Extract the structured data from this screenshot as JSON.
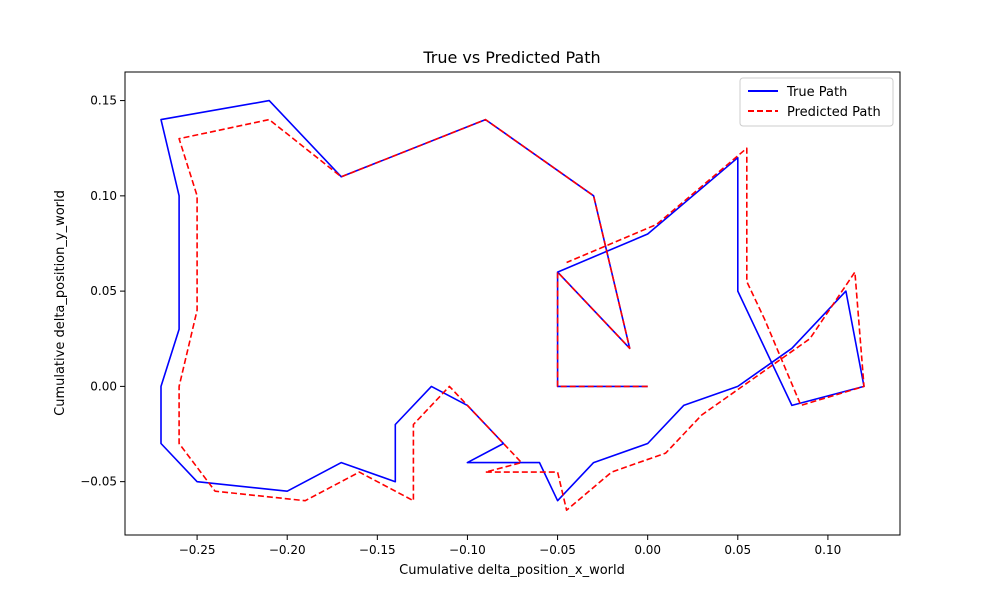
{
  "chart_data": {
    "type": "line",
    "title": "True vs Predicted Path",
    "xlabel": "Cumulative delta_position_x_world",
    "ylabel": "Cumulative delta_position_y_world",
    "xlim": [
      -0.29,
      0.14
    ],
    "ylim": [
      -0.078,
      0.165
    ],
    "xticks": [
      -0.25,
      -0.2,
      -0.15,
      -0.1,
      -0.05,
      0.0,
      0.05,
      0.1
    ],
    "xtick_labels": [
      "−0.25",
      "−0.20",
      "−0.15",
      "−0.10",
      "−0.05",
      "0.00",
      "0.05",
      "0.10"
    ],
    "yticks": [
      -0.05,
      0.0,
      0.05,
      0.1,
      0.15
    ],
    "ytick_labels": [
      "−0.05",
      "0.00",
      "0.05",
      "0.10",
      "0.15"
    ],
    "grid": false,
    "legend_position": "top-right",
    "series": [
      {
        "name": "True Path",
        "color": "#0000ff",
        "style": "solid",
        "points": [
          [
            0.0,
            0.0
          ],
          [
            -0.05,
            0.0
          ],
          [
            -0.05,
            0.06
          ],
          [
            -0.01,
            0.02
          ],
          [
            -0.03,
            0.1
          ],
          [
            -0.09,
            0.14
          ],
          [
            -0.17,
            0.11
          ],
          [
            -0.21,
            0.15
          ],
          [
            -0.27,
            0.14
          ],
          [
            -0.26,
            0.1
          ],
          [
            -0.26,
            0.03
          ],
          [
            -0.27,
            0.0
          ],
          [
            -0.27,
            -0.03
          ],
          [
            -0.25,
            -0.05
          ],
          [
            -0.2,
            -0.055
          ],
          [
            -0.17,
            -0.04
          ],
          [
            -0.14,
            -0.05
          ],
          [
            -0.14,
            -0.02
          ],
          [
            -0.12,
            0.0
          ],
          [
            -0.1,
            -0.01
          ],
          [
            -0.08,
            -0.03
          ],
          [
            -0.1,
            -0.04
          ],
          [
            -0.06,
            -0.04
          ],
          [
            -0.05,
            -0.06
          ],
          [
            -0.03,
            -0.04
          ],
          [
            0.0,
            -0.03
          ],
          [
            0.02,
            -0.01
          ],
          [
            0.05,
            0.0
          ],
          [
            0.08,
            0.02
          ],
          [
            0.11,
            0.05
          ],
          [
            0.12,
            0.0
          ],
          [
            0.08,
            -0.01
          ],
          [
            0.06,
            0.03
          ],
          [
            0.05,
            0.05
          ],
          [
            0.05,
            0.12
          ],
          [
            0.0,
            0.08
          ],
          [
            -0.05,
            0.06
          ]
        ]
      },
      {
        "name": "Predicted Path",
        "color": "#ff0000",
        "style": "dashed",
        "points": [
          [
            0.0,
            0.0
          ],
          [
            -0.05,
            0.0
          ],
          [
            -0.05,
            0.06
          ],
          [
            -0.01,
            0.02
          ],
          [
            -0.03,
            0.1
          ],
          [
            -0.09,
            0.14
          ],
          [
            -0.17,
            0.11
          ],
          [
            -0.21,
            0.14
          ],
          [
            -0.26,
            0.13
          ],
          [
            -0.25,
            0.1
          ],
          [
            -0.25,
            0.04
          ],
          [
            -0.26,
            0.0
          ],
          [
            -0.26,
            -0.03
          ],
          [
            -0.24,
            -0.055
          ],
          [
            -0.19,
            -0.06
          ],
          [
            -0.16,
            -0.045
          ],
          [
            -0.13,
            -0.06
          ],
          [
            -0.13,
            -0.02
          ],
          [
            -0.11,
            0.0
          ],
          [
            -0.09,
            -0.02
          ],
          [
            -0.07,
            -0.04
          ],
          [
            -0.09,
            -0.045
          ],
          [
            -0.05,
            -0.045
          ],
          [
            -0.045,
            -0.065
          ],
          [
            -0.02,
            -0.045
          ],
          [
            0.01,
            -0.035
          ],
          [
            0.03,
            -0.015
          ],
          [
            0.06,
            0.005
          ],
          [
            0.09,
            0.025
          ],
          [
            0.115,
            0.06
          ],
          [
            0.12,
            0.0
          ],
          [
            0.085,
            -0.01
          ],
          [
            0.065,
            0.035
          ],
          [
            0.055,
            0.055
          ],
          [
            0.055,
            0.125
          ],
          [
            0.005,
            0.085
          ],
          [
            -0.045,
            0.065
          ]
        ]
      }
    ]
  }
}
